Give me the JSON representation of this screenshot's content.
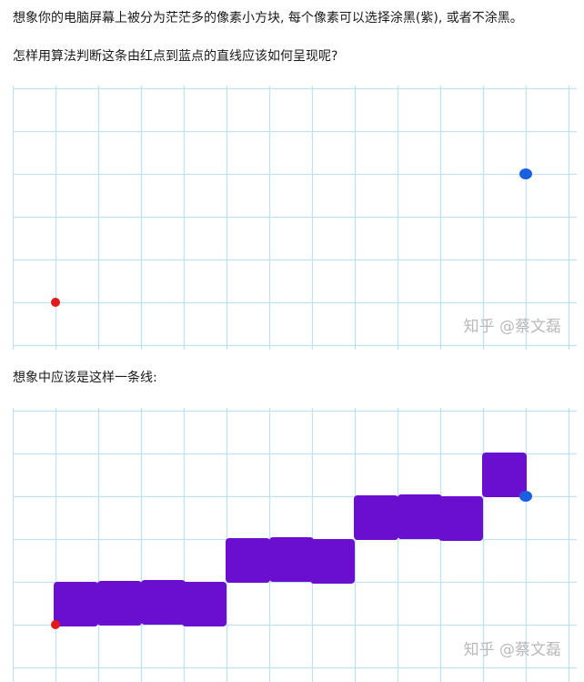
{
  "article": {
    "paragraph1": "想象你的电脑屏幕上被分为茫茫多的像素小方块, 每个像素可以选择涂黑(紫), 或者不涂黑。",
    "paragraph2": "怎样用算法判断这条由红点到蓝点的直线应该如何呈现呢?",
    "paragraph3": "想象中应该是这样一条线:"
  },
  "figure1": {
    "watermark": "知乎 @蔡文磊",
    "red_point": {
      "col": 1,
      "row": 5
    },
    "blue_point": {
      "col": 12,
      "row": 2
    }
  },
  "figure2": {
    "watermark": "知乎 @蔡文磊",
    "red_point": {
      "col": 1,
      "row": 5
    },
    "blue_point": {
      "col": 12,
      "row": 2
    },
    "filled_cells": [
      {
        "col": 1,
        "row": 4
      },
      {
        "col": 2,
        "row": 4
      },
      {
        "col": 3,
        "row": 4
      },
      {
        "col": 4,
        "row": 4
      },
      {
        "col": 5,
        "row": 3
      },
      {
        "col": 6,
        "row": 3
      },
      {
        "col": 7,
        "row": 3
      },
      {
        "col": 8,
        "row": 2
      },
      {
        "col": 9,
        "row": 2
      },
      {
        "col": 10,
        "row": 2
      },
      {
        "col": 11,
        "row": 1
      }
    ]
  },
  "colors": {
    "grid": "#bfe3f5",
    "fill": "#6a0fd0",
    "red": "#e01b1b",
    "blue": "#1a5fe0"
  }
}
